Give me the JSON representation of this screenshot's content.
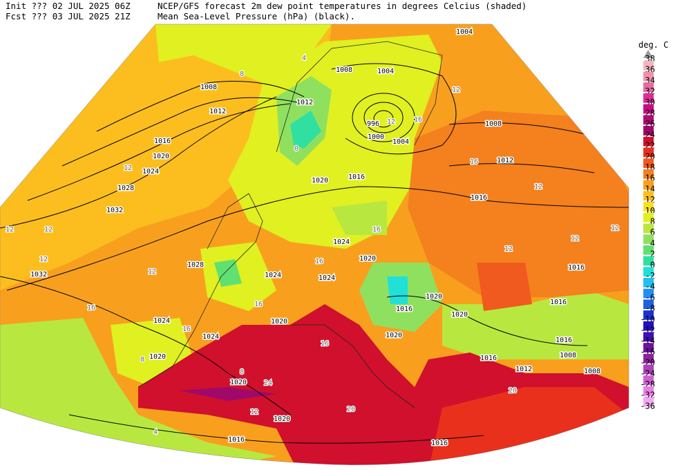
{
  "header": {
    "init": "Init  ??? 02 JUL 2025 06Z",
    "title": "NCEP/GFS forecast 2m dew point temperatures in degrees Celcius (shaded)",
    "fcst": "Fcst ??? 03 JUL 2025 21Z",
    "subtitle": "Mean Sea-Level Pressure (hPa) (black)."
  },
  "legend": {
    "title": "deg. C",
    "levels": [
      38,
      36,
      34,
      32,
      30,
      28,
      26,
      24,
      22,
      20,
      18,
      16,
      14,
      12,
      10,
      8,
      6,
      4,
      2,
      0,
      -2,
      -4,
      -6,
      -8,
      -10,
      -12,
      -14,
      -16,
      -20,
      -24,
      -28,
      -32,
      -36
    ],
    "colors": [
      "#f6b4bc",
      "#f290ac",
      "#ea68a0",
      "#e02c94",
      "#c80c84",
      "#b00a74",
      "#a0086a",
      "#d0102c",
      "#e8301c",
      "#f05a1e",
      "#f4801e",
      "#f8a01e",
      "#fcbe1e",
      "#f8e020",
      "#e0f020",
      "#b8e840",
      "#90e060",
      "#60e070",
      "#30e0a0",
      "#20e0d8",
      "#20c0f0",
      "#2090f0",
      "#2060e0",
      "#2030d0",
      "#2010c0",
      "#4010b0",
      "#7010a0",
      "#9020a0",
      "#b040b8",
      "#d060d0",
      "#e880e8",
      "#f4a8f4"
    ]
  },
  "map": {
    "pressure_labels": [
      1004,
      1008,
      1012,
      1016,
      1020,
      1024,
      1028,
      1032,
      1032,
      1028,
      1024,
      1024,
      1020,
      1020,
      1020,
      1016,
      1008,
      1004,
      996,
      1000,
      1004,
      1008,
      1012,
      1016,
      1016,
      1020,
      1024,
      1020,
      1024,
      1024,
      1020,
      1020,
      1016,
      1020,
      1016,
      1016,
      1016,
      1008,
      1012,
      1016,
      1008,
      1016,
      1020,
      1012
    ],
    "dewpoint_labels": [
      8,
      4,
      12,
      16,
      12,
      16,
      12,
      12,
      12,
      12,
      8,
      12,
      12,
      16,
      16,
      16,
      16,
      12,
      8,
      4,
      16,
      20,
      20,
      24,
      12,
      12,
      16,
      0,
      12
    ]
  }
}
